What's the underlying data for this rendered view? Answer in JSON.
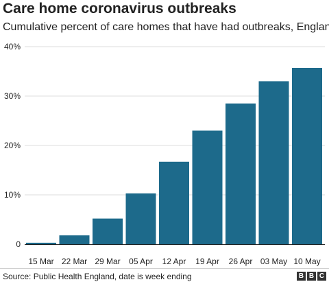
{
  "header": {
    "title": "Care home coronavirus outbreaks",
    "subtitle": "Cumulative percent of care homes that have had outbreaks, England"
  },
  "footer": {
    "source": "Source: Public Health England, date is week ending",
    "logo_letters": [
      "B",
      "B",
      "C"
    ]
  },
  "colors": {
    "bar": "#1d6a8b",
    "grid": "#dddddd",
    "baseline": "#222222",
    "text": "#222222"
  },
  "chart_data": {
    "type": "bar",
    "title": "Care home coronavirus outbreaks",
    "subtitle": "Cumulative percent of care homes that have had outbreaks, England",
    "categories": [
      "15 Mar",
      "22 Mar",
      "29 Mar",
      "05 Apr",
      "12 Apr",
      "19 Apr",
      "26 Apr",
      "03 May",
      "10 May"
    ],
    "values": [
      0.3,
      1.8,
      5.2,
      10.3,
      16.7,
      23.0,
      28.5,
      33.0,
      35.7
    ],
    "ylim": [
      0,
      40
    ],
    "yticks": [
      0,
      10,
      20,
      30,
      40
    ],
    "ytick_labels": [
      "0",
      "10%",
      "20%",
      "30%",
      "40%"
    ],
    "grid": true,
    "legend": "none"
  }
}
